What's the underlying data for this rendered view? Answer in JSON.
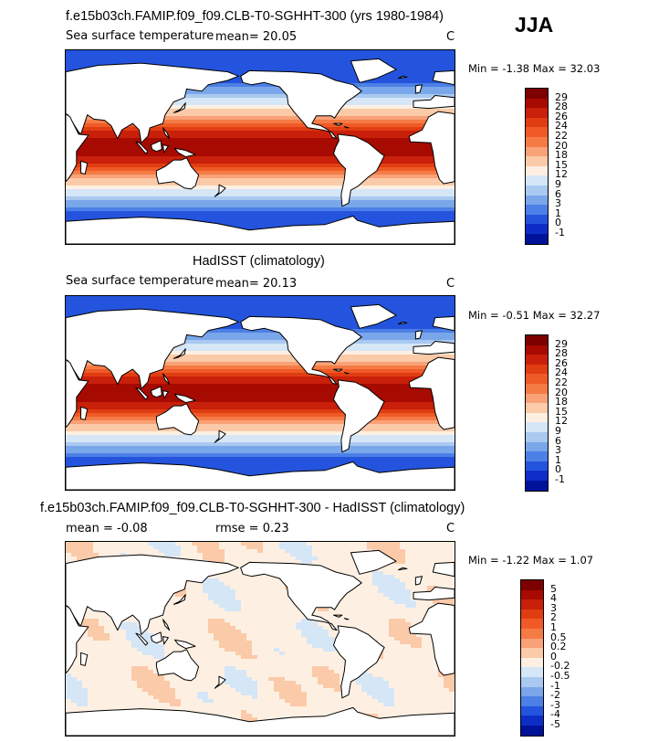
{
  "season": "JJA",
  "panels": [
    {
      "title": "f.e15b03ch.FAMIP.f09_f09.CLB-T0-SGHHT-300 (yrs 1980-1984)",
      "variable": "Sea surface temperature",
      "stat1": "mean=   20.05",
      "stat2": "",
      "units": "C",
      "minmax": "Min =   -1.38  Max =   32.03",
      "kind": "abs",
      "colorbar": {
        "labels": [
          "29",
          "28",
          "26",
          "24",
          "22",
          "20",
          "18",
          "15",
          "12",
          "9",
          "6",
          "3",
          "1",
          "0",
          "-1"
        ],
        "colors": [
          "#7d0000",
          "#a60a00",
          "#c8200a",
          "#e03d12",
          "#ef5a26",
          "#f57b45",
          "#f9a177",
          "#fbcaa8",
          "#fdf0e2",
          "#d5e6f7",
          "#a9c9f0",
          "#7aa6ea",
          "#4c80e6",
          "#2454dd",
          "#0c2ec6",
          "#00129a"
        ]
      }
    },
    {
      "title": "HadISST (climatology)",
      "variable": "Sea surface temperature",
      "stat1": "mean=   20.13",
      "stat2": "",
      "units": "C",
      "minmax": "Min =   -0.51  Max =   32.27",
      "kind": "abs",
      "colorbar": {
        "labels": [
          "29",
          "28",
          "26",
          "24",
          "22",
          "20",
          "18",
          "15",
          "12",
          "9",
          "6",
          "3",
          "1",
          "0",
          "-1"
        ],
        "colors": [
          "#7d0000",
          "#a60a00",
          "#c8200a",
          "#e03d12",
          "#ef5a26",
          "#f57b45",
          "#f9a177",
          "#fbcaa8",
          "#fdf0e2",
          "#d5e6f7",
          "#a9c9f0",
          "#7aa6ea",
          "#4c80e6",
          "#2454dd",
          "#0c2ec6",
          "#00129a"
        ]
      }
    },
    {
      "title": "f.e15b03ch.FAMIP.f09_f09.CLB-T0-SGHHT-300 - HadISST (climatology)",
      "variable": "",
      "stat1": "mean =   -0.08",
      "stat2": "rmse =    0.23",
      "units": "C",
      "minmax": "Min =   -1.22  Max =    1.07",
      "kind": "diff",
      "colorbar": {
        "labels": [
          "5",
          "4",
          "3",
          "2",
          "1",
          "0.5",
          "0.2",
          "0",
          "-0.2",
          "-0.5",
          "-1",
          "-2",
          "-3",
          "-4",
          "-5"
        ],
        "colors": [
          "#7d0000",
          "#a60a00",
          "#c8200a",
          "#e03d12",
          "#ef5a26",
          "#f57b45",
          "#f9a177",
          "#fbcaa8",
          "#fdf0e2",
          "#d5e6f7",
          "#a9c9f0",
          "#7aa6ea",
          "#4c80e6",
          "#2454dd",
          "#0c2ec6",
          "#00129a"
        ]
      }
    }
  ]
}
